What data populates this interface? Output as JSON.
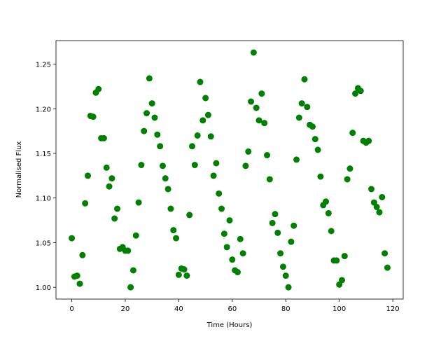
{
  "chart_data": {
    "type": "scatter",
    "xlabel": "Time (Hours)",
    "ylabel": "Normalised Flux",
    "color": "#008000",
    "x": [
      0,
      1,
      2,
      3,
      4,
      5,
      6,
      7,
      8,
      9,
      10,
      11,
      12,
      13,
      14,
      15,
      16,
      17,
      18,
      19,
      20,
      21,
      22,
      23,
      24,
      25,
      26,
      27,
      28,
      29,
      30,
      31,
      32,
      33,
      34,
      35,
      36,
      37,
      38,
      39,
      40,
      41,
      42,
      43,
      44,
      45,
      46,
      47,
      48,
      49,
      50,
      51,
      52,
      53,
      54,
      55,
      56,
      57,
      58,
      59,
      60,
      61,
      62,
      63,
      64,
      65,
      66,
      67,
      68,
      69,
      70,
      71,
      72,
      73,
      74,
      75,
      76,
      77,
      78,
      79,
      80,
      81,
      82,
      83,
      84,
      85,
      86,
      87,
      88,
      89,
      90,
      91,
      92,
      93,
      94,
      95,
      96,
      97,
      98,
      99,
      100,
      101,
      102,
      103,
      104,
      105,
      106,
      107,
      108,
      109,
      110,
      111,
      112,
      113,
      114,
      115,
      116,
      117,
      118
    ],
    "values": [
      1.055,
      1.012,
      1.013,
      1.004,
      1.036,
      1.094,
      1.125,
      1.192,
      1.191,
      1.218,
      1.222,
      1.167,
      1.167,
      1.134,
      1.113,
      1.122,
      1.077,
      1.088,
      1.043,
      1.045,
      1.041,
      1.041,
      1.0,
      1.019,
      1.058,
      1.095,
      1.137,
      1.175,
      1.195,
      1.234,
      1.206,
      1.19,
      1.171,
      1.158,
      1.136,
      1.122,
      1.11,
      1.088,
      1.064,
      1.055,
      1.014,
      1.021,
      1.02,
      1.013,
      1.081,
      1.158,
      1.137,
      1.17,
      1.23,
      1.187,
      1.212,
      1.193,
      1.169,
      1.125,
      1.139,
      1.105,
      1.088,
      1.06,
      1.045,
      1.075,
      1.031,
      1.019,
      1.017,
      1.054,
      1.038,
      1.136,
      1.152,
      1.208,
      1.263,
      1.201,
      1.187,
      1.217,
      1.184,
      1.148,
      1.121,
      1.072,
      1.082,
      1.061,
      1.038,
      1.023,
      1.013,
      1.0,
      1.051,
      1.069,
      1.143,
      1.19,
      1.206,
      1.233,
      1.202,
      1.182,
      1.18,
      1.166,
      1.154,
      1.124,
      1.092,
      1.096,
      1.083,
      1.063,
      1.03,
      1.03,
      1.003,
      1.008,
      1.035,
      1.121,
      1.133,
      1.173,
      1.217,
      1.223,
      1.22,
      1.164,
      1.162,
      1.164,
      1.11,
      1.095,
      1.09,
      1.084,
      1.101,
      1.038,
      1.022
    ],
    "xlim": [
      -5.9,
      123.9
    ],
    "xticks": [
      0,
      20,
      40,
      60,
      80,
      100,
      120
    ],
    "ylim": [
      0.9868,
      1.2763
    ],
    "yticks": [
      {
        "value": 1.0,
        "label": "1.00"
      },
      {
        "value": 1.05,
        "label": "1.05"
      },
      {
        "value": 1.1,
        "label": "1.10"
      },
      {
        "value": 1.15,
        "label": "1.15"
      },
      {
        "value": 1.2,
        "label": "1.20"
      },
      {
        "value": 1.25,
        "label": "1.25"
      }
    ]
  }
}
